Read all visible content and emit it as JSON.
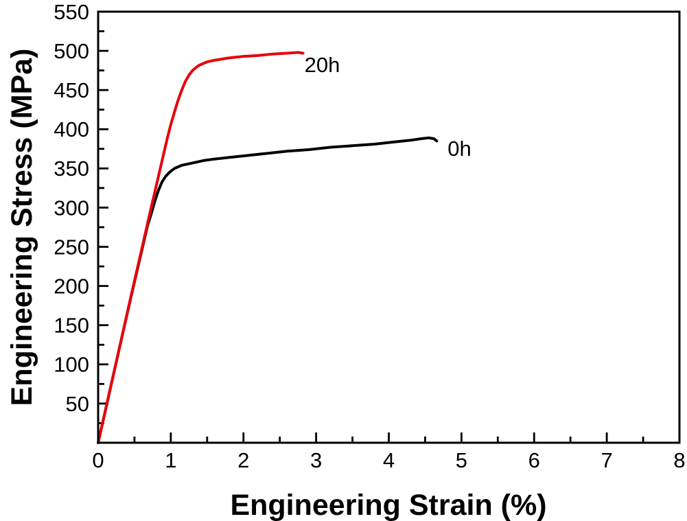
{
  "figure": {
    "background": "#ffffff",
    "frame_color": "#000000",
    "tick_color": "#000000",
    "text_color": "#000000"
  },
  "chart_data": {
    "type": "line",
    "title": "",
    "xlabel": "Engineering Strain (%)",
    "ylabel": "Engineering Stress (MPa)",
    "xlim": [
      0,
      8
    ],
    "ylim": [
      0,
      550
    ],
    "grid": false,
    "legend_position": "inline-annotations",
    "x_major_ticks": [
      0,
      1,
      2,
      3,
      4,
      5,
      6,
      7,
      8
    ],
    "x_tick_labels": [
      "0",
      "1",
      "2",
      "3",
      "4",
      "5",
      "6",
      "7",
      "8"
    ],
    "x_minor_ticks": [
      0.5,
      1.5,
      2.5,
      3.5,
      4.5,
      5.5,
      6.5,
      7.5
    ],
    "y_major_ticks": [
      50,
      100,
      150,
      200,
      250,
      300,
      350,
      400,
      450,
      500,
      550
    ],
    "y_tick_labels": [
      "50",
      "100",
      "150",
      "200",
      "250",
      "300",
      "350",
      "400",
      "450",
      "500",
      "550"
    ],
    "y_minor_ticks": [
      25,
      75,
      125,
      175,
      225,
      275,
      325,
      375,
      425,
      475,
      525
    ],
    "series": [
      {
        "name": "0h",
        "label": "0h",
        "color": "#000000",
        "line_width": 4,
        "label_pos": {
          "x": 4.81,
          "y": 366
        },
        "points": [
          [
            0,
            0
          ],
          [
            0.15,
            62
          ],
          [
            0.3,
            124
          ],
          [
            0.45,
            185
          ],
          [
            0.6,
            245
          ],
          [
            0.68,
            277
          ],
          [
            0.73,
            292
          ],
          [
            0.78,
            308
          ],
          [
            0.83,
            322
          ],
          [
            0.88,
            333
          ],
          [
            0.93,
            340
          ],
          [
            0.98,
            345
          ],
          [
            1.05,
            350
          ],
          [
            1.15,
            354
          ],
          [
            1.3,
            357
          ],
          [
            1.45,
            360
          ],
          [
            1.6,
            362
          ],
          [
            1.8,
            364
          ],
          [
            2.0,
            366
          ],
          [
            2.3,
            369
          ],
          [
            2.6,
            372
          ],
          [
            2.9,
            374
          ],
          [
            3.2,
            377
          ],
          [
            3.5,
            379
          ],
          [
            3.8,
            381
          ],
          [
            4.1,
            384
          ],
          [
            4.3,
            386
          ],
          [
            4.45,
            388
          ],
          [
            4.55,
            389
          ],
          [
            4.62,
            388
          ],
          [
            4.66,
            385
          ]
        ]
      },
      {
        "name": "20h",
        "label": "20h",
        "color": "#e8000b",
        "line_width": 4,
        "label_pos": {
          "x": 2.84,
          "y": 473
        },
        "points": [
          [
            0,
            0
          ],
          [
            0.15,
            62
          ],
          [
            0.3,
            124
          ],
          [
            0.45,
            186
          ],
          [
            0.6,
            247
          ],
          [
            0.7,
            288
          ],
          [
            0.8,
            328
          ],
          [
            0.9,
            368
          ],
          [
            0.95,
            388
          ],
          [
            1.0,
            406
          ],
          [
            1.05,
            422
          ],
          [
            1.1,
            437
          ],
          [
            1.15,
            450
          ],
          [
            1.2,
            461
          ],
          [
            1.25,
            469
          ],
          [
            1.3,
            475
          ],
          [
            1.35,
            479
          ],
          [
            1.4,
            482
          ],
          [
            1.5,
            486
          ],
          [
            1.6,
            488
          ],
          [
            1.8,
            491
          ],
          [
            2.0,
            493
          ],
          [
            2.2,
            494
          ],
          [
            2.4,
            496
          ],
          [
            2.6,
            497
          ],
          [
            2.75,
            498
          ],
          [
            2.82,
            497
          ]
        ]
      }
    ]
  }
}
